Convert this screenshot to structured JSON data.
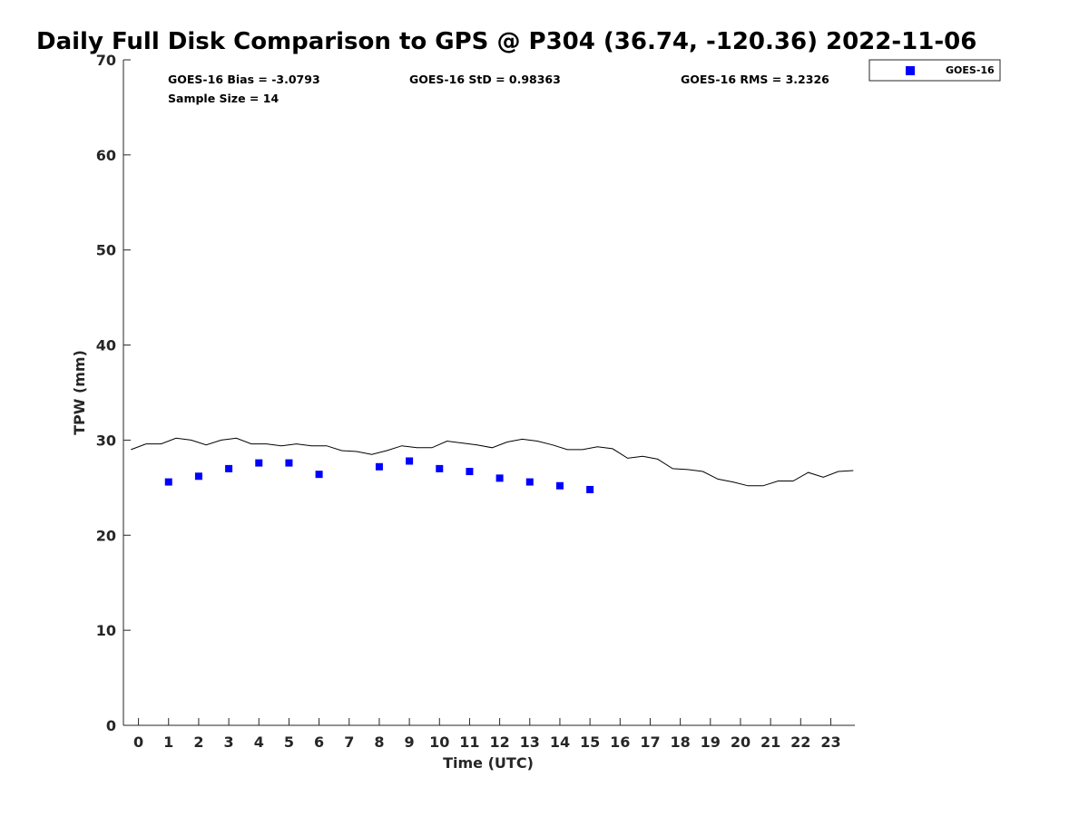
{
  "chart_data": {
    "type": "scatter",
    "title": "Daily Full Disk Comparison to GPS @ P304 (36.74, -120.36) 2022-11-06",
    "xlabel": "Time (UTC)",
    "ylabel": "TPW (mm)",
    "xlim": [
      -0.5,
      23.8
    ],
    "ylim": [
      0,
      70
    ],
    "xticks": [
      0,
      1,
      2,
      3,
      4,
      5,
      6,
      7,
      8,
      9,
      10,
      11,
      12,
      13,
      14,
      15,
      16,
      17,
      18,
      19,
      20,
      21,
      22,
      23
    ],
    "yticks": [
      0,
      10,
      20,
      30,
      40,
      50,
      60,
      70
    ],
    "grid": false,
    "legend": {
      "position": "top-right",
      "entries": [
        "GOES-16"
      ]
    },
    "stats": {
      "bias": "GOES-16 Bias = -3.0793",
      "std": "GOES-16 StD = 0.98363",
      "rms": "GOES-16 RMS = 3.2326",
      "sample": "Sample Size = 14"
    },
    "series": [
      {
        "name": "GOES-16",
        "kind": "scatter",
        "marker": "square",
        "color": "#0000ff",
        "x": [
          1,
          2,
          3,
          4,
          5,
          6,
          8,
          9,
          10,
          11,
          12,
          13,
          14,
          15
        ],
        "y": [
          25.6,
          26.2,
          27.0,
          27.6,
          27.6,
          26.4,
          27.2,
          27.8,
          27.0,
          26.7,
          26.0,
          25.6,
          25.2,
          24.8
        ]
      },
      {
        "name": "GPS",
        "kind": "line",
        "color": "#000000",
        "x": [
          -0.25,
          0.25,
          0.75,
          1.25,
          1.75,
          2.25,
          2.75,
          3.25,
          3.75,
          4.25,
          4.75,
          5.25,
          5.75,
          6.25,
          6.75,
          7.25,
          7.75,
          8.25,
          8.75,
          9.25,
          9.75,
          10.25,
          10.75,
          11.25,
          11.75,
          12.25,
          12.75,
          13.25,
          13.75,
          14.25,
          14.75,
          15.25,
          15.75,
          16.25,
          16.75,
          17.25,
          17.75,
          18.25,
          18.75,
          19.25,
          19.75,
          20.25,
          20.75,
          21.25,
          21.75,
          22.25,
          22.75,
          23.25,
          23.75
        ],
        "y": [
          29.0,
          29.6,
          29.6,
          30.2,
          30.0,
          29.5,
          30.0,
          30.2,
          29.6,
          29.6,
          29.4,
          29.6,
          29.4,
          29.4,
          28.9,
          28.8,
          28.5,
          28.9,
          29.4,
          29.2,
          29.2,
          29.9,
          29.7,
          29.5,
          29.2,
          29.8,
          30.1,
          29.9,
          29.5,
          29.0,
          29.0,
          29.3,
          29.1,
          28.1,
          28.3,
          28.0,
          27.0,
          26.9,
          26.7,
          25.9,
          25.6,
          25.2,
          25.2,
          25.7,
          25.7,
          26.6,
          26.1,
          26.7,
          26.8
        ]
      }
    ]
  }
}
